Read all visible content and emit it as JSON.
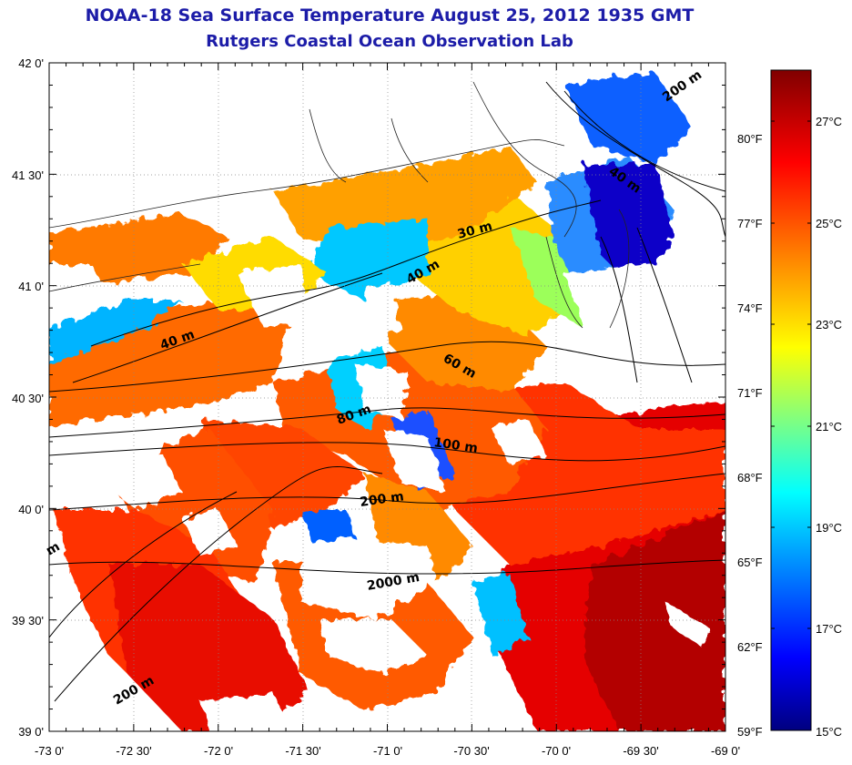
{
  "title": {
    "line1": "NOAA-18 Sea Surface Temperature August 25, 2012 1935 GMT",
    "line2": "Rutgers Coastal Ocean Observation Lab"
  },
  "lat_labels": [
    "42 0'",
    "41 30'",
    "41 0'",
    "40 30'",
    "40 0'",
    "39 30'",
    "39 0'"
  ],
  "lon_labels": [
    "-73 0'",
    "-72 30'",
    "-72 0'",
    "-71 30'",
    "-71 0'",
    "-70 30'",
    "-70 0'",
    "-69 30'",
    "-69 0'"
  ],
  "fahrenheit_labels": [
    "80°F",
    "77°F",
    "74°F",
    "71°F",
    "68°F",
    "65°F",
    "62°F",
    "59°F"
  ],
  "celsius_labels": [
    "27°C",
    "25°C",
    "23°C",
    "21°C",
    "19°C",
    "17°C",
    "15°C"
  ],
  "depth_labels": [
    "200 m",
    "40 m",
    "30 m",
    "40 m",
    "40 m",
    "60 m",
    "80 m",
    "100 m",
    "200 m",
    "2000 m",
    "200 m",
    "m"
  ],
  "colorbar": {
    "min_c": 15,
    "max_c": 28.3,
    "stops": [
      "#000080",
      "#0000ff",
      "#00a0ff",
      "#00ffff",
      "#80ff80",
      "#ffff00",
      "#ff8000",
      "#ff0000",
      "#800000"
    ]
  },
  "map": {
    "lat_range": [
      39.0,
      42.0
    ],
    "lon_range": [
      -73.0,
      -69.0
    ],
    "colors": {
      "warm": "#ff2a00",
      "hot": "#cc0000",
      "orange": "#ff7a00",
      "yellow": "#ffd200",
      "cyan": "#14d4ff",
      "blue": "#0a3cff",
      "deep_blue": "#0000a0",
      "land": "#ffffff"
    }
  }
}
